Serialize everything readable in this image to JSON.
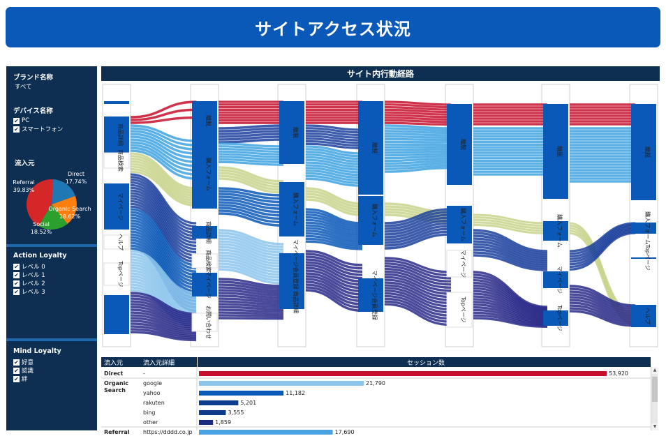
{
  "header": {
    "title": "サイトアクセス状況"
  },
  "sidebar": {
    "brand": {
      "title": "ブランド名称",
      "value": "すべて"
    },
    "device": {
      "title": "デバイス名称",
      "options": [
        "PC",
        "スマートフォン"
      ]
    },
    "source": {
      "title": "流入元",
      "slices": [
        {
          "name": "Direct",
          "pct": "17.74%",
          "value": 17.74,
          "color": "#1f77b4"
        },
        {
          "name": "Organic Search",
          "pct": "18.62%",
          "value": 18.62,
          "color": "#ff7f0e"
        },
        {
          "name": "Social",
          "pct": "18.52%",
          "value": 18.52,
          "color": "#2ca02c"
        },
        {
          "name": "Referral",
          "pct": "39.83%",
          "value": 39.83,
          "color": "#d62728"
        }
      ]
    },
    "action_loyalty": {
      "title": "Action Loyalty",
      "options": [
        "レベル 0",
        "レベル 1",
        "レベル 2",
        "レベル 3"
      ]
    },
    "mind_loyalty": {
      "title": "Mind Loyalty",
      "options": [
        "好意",
        "認識",
        "絆"
      ]
    }
  },
  "sankey": {
    "title": "サイト内行動経路",
    "stages": [
      {
        "nodes": [
          "商品詳細",
          "商品検索",
          "マイページ",
          "ヘルプ",
          "Topページ"
        ]
      },
      {
        "nodes": [
          "離脱",
          "購入フォーム",
          "商品詳細",
          "商品検索",
          "マイページ",
          "お問い合わせ"
        ]
      },
      {
        "nodes": [
          "離脱",
          "購入フォーム",
          "マイページ会員登録 商品詳細"
        ]
      },
      {
        "nodes": [
          "離脱",
          "購入フォーム",
          "マイページ会員登録"
        ]
      },
      {
        "nodes": [
          "離脱",
          "購入フォーム",
          "マイページ",
          "Topページ"
        ]
      },
      {
        "nodes": [
          "離脱",
          "購入フォーム",
          "マイページ",
          "Topページ"
        ]
      },
      {
        "nodes": [
          "離脱",
          "購入フォーム",
          "ヘルプ",
          "Topページ"
        ]
      }
    ]
  },
  "table": {
    "headers": {
      "source": "流入元",
      "detail": "流入元詳細",
      "sessions": "セッション数"
    },
    "max": 53920,
    "rows": [
      {
        "source": "Direct",
        "detail": "-",
        "value": 53920,
        "label": "53,920",
        "color": "#c8102e"
      },
      {
        "source": "Organic Search",
        "detail": "google",
        "value": 21790,
        "label": "21,790",
        "color": "#8cc4ec"
      },
      {
        "source": "",
        "detail": "yahoo",
        "value": 11182,
        "label": "11,182",
        "color": "#0a58b7"
      },
      {
        "source": "",
        "detail": "rakuten",
        "value": 5201,
        "label": "5,201",
        "color": "#0d3c8c"
      },
      {
        "source": "",
        "detail": "bing",
        "value": 3555,
        "label": "3,555",
        "color": "#0d3c8c"
      },
      {
        "source": "",
        "detail": "other",
        "value": 1859,
        "label": "1,859",
        "color": "#1a2a80"
      },
      {
        "source": "Referral",
        "detail": "https://dddd.co.jp",
        "value": 17690,
        "label": "17,690",
        "color": "#4aa3df"
      }
    ]
  }
}
